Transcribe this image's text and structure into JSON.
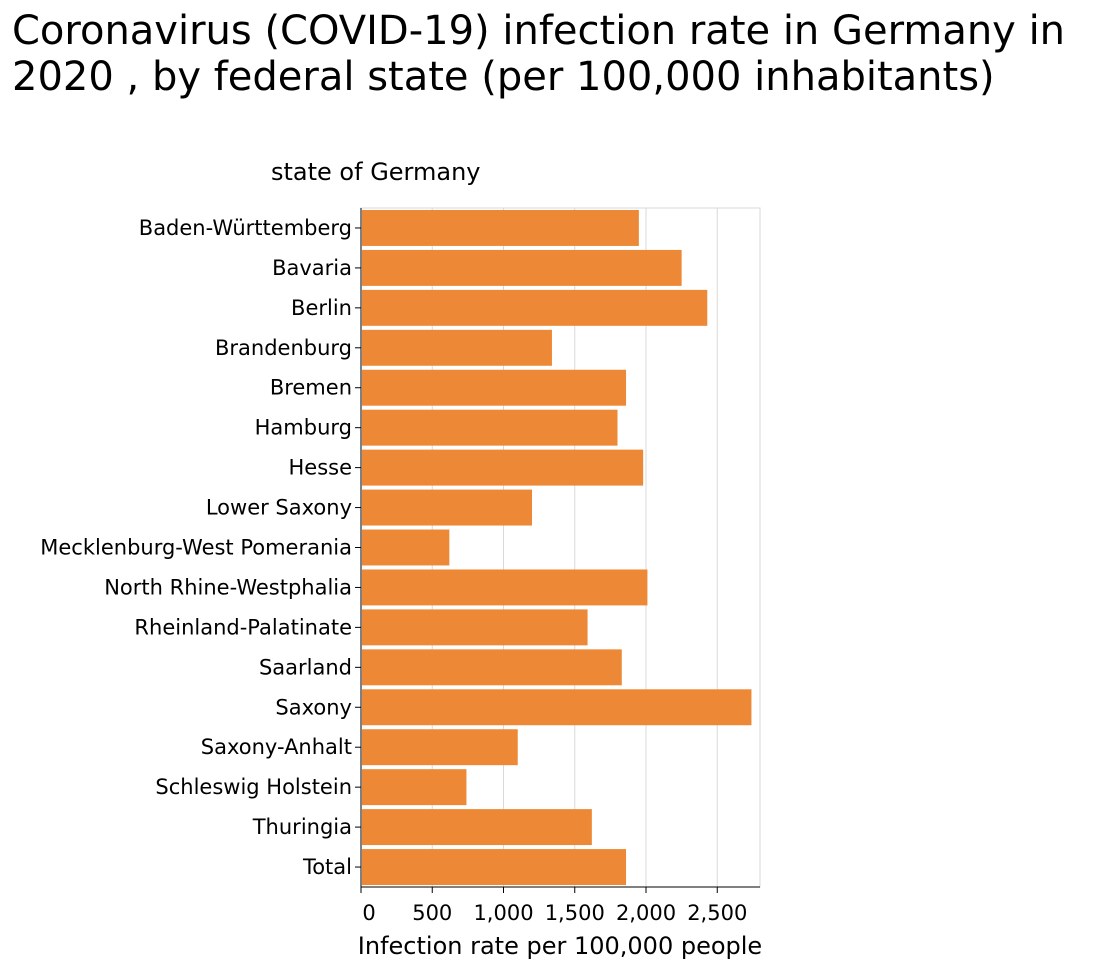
{
  "chart_data": {
    "type": "bar",
    "orientation": "horizontal",
    "title": "Coronavirus (COVID-19) infection rate in Germany in 2020 , by federal state (per 100,000 inhabitants)",
    "ylabel": "state of Germany",
    "xlabel": "Infection rate per 100,000 people",
    "categories": [
      "Baden-Württemberg",
      "Bavaria",
      "Berlin",
      "Brandenburg",
      "Bremen",
      "Hamburg",
      "Hesse",
      "Lower Saxony",
      "Mecklenburg-West Pomerania",
      "North Rhine-Westphalia",
      "Rheinland-Palatinate",
      "Saarland",
      "Saxony",
      "Saxony-Anhalt",
      "Schleswig Holstein",
      "Thuringia",
      "Total"
    ],
    "values": [
      1950,
      2250,
      2430,
      1340,
      1860,
      1800,
      1980,
      1200,
      620,
      2010,
      1590,
      1830,
      2740,
      1100,
      740,
      1620,
      1860
    ],
    "xlim": [
      0,
      2800
    ],
    "xticks": [
      0,
      500,
      1000,
      1500,
      2000,
      2500
    ],
    "xtick_labels": [
      "0",
      "500",
      "1,000",
      "1,500",
      "2,000",
      "2,500"
    ],
    "grid": "vertical",
    "bar_color": "#ed8936"
  }
}
